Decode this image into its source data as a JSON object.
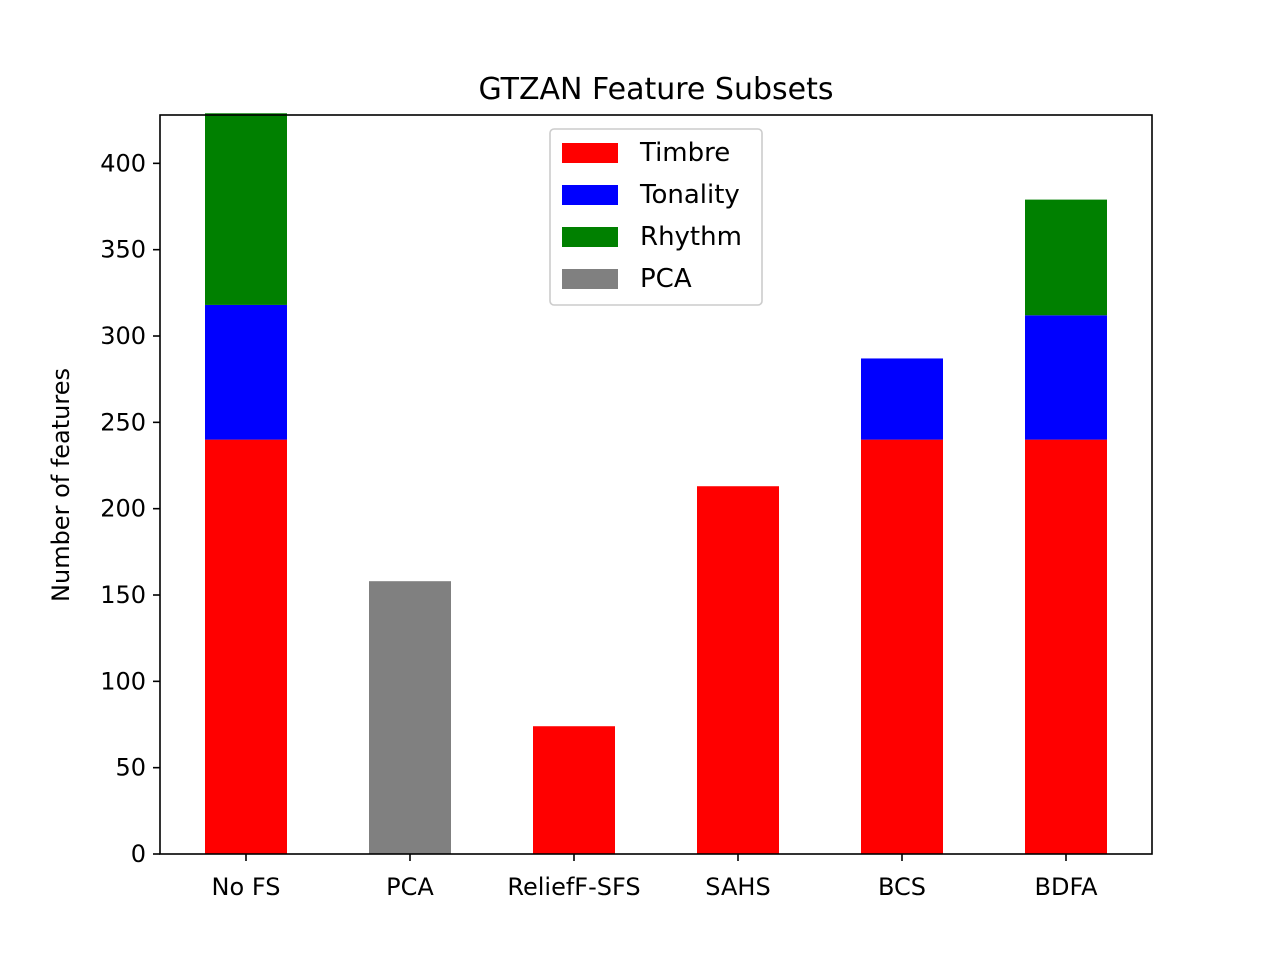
{
  "chart_data": {
    "type": "bar",
    "stacked": true,
    "title": "GTZAN Feature Subsets",
    "xlabel": "",
    "ylabel": "Number of features",
    "categories": [
      "No FS",
      "PCA",
      "ReliefF-SFS",
      "SAHS",
      "BCS",
      "BDFA"
    ],
    "series": [
      {
        "name": "Timbre",
        "color": "#ff0000",
        "values": [
          240,
          0,
          74,
          213,
          240,
          240
        ]
      },
      {
        "name": "Tonality",
        "color": "#0000ff",
        "values": [
          78,
          0,
          0,
          0,
          47,
          72
        ]
      },
      {
        "name": "Rhythm",
        "color": "#008000",
        "values": [
          111,
          0,
          0,
          0,
          0,
          67
        ]
      },
      {
        "name": "PCA",
        "color": "#808080",
        "values": [
          0,
          158,
          0,
          0,
          0,
          0
        ]
      }
    ],
    "ylim": [
      0,
      428
    ],
    "yticks": [
      0,
      50,
      100,
      150,
      200,
      250,
      300,
      350,
      400
    ],
    "grid": false,
    "legend_position": "upper-center"
  }
}
